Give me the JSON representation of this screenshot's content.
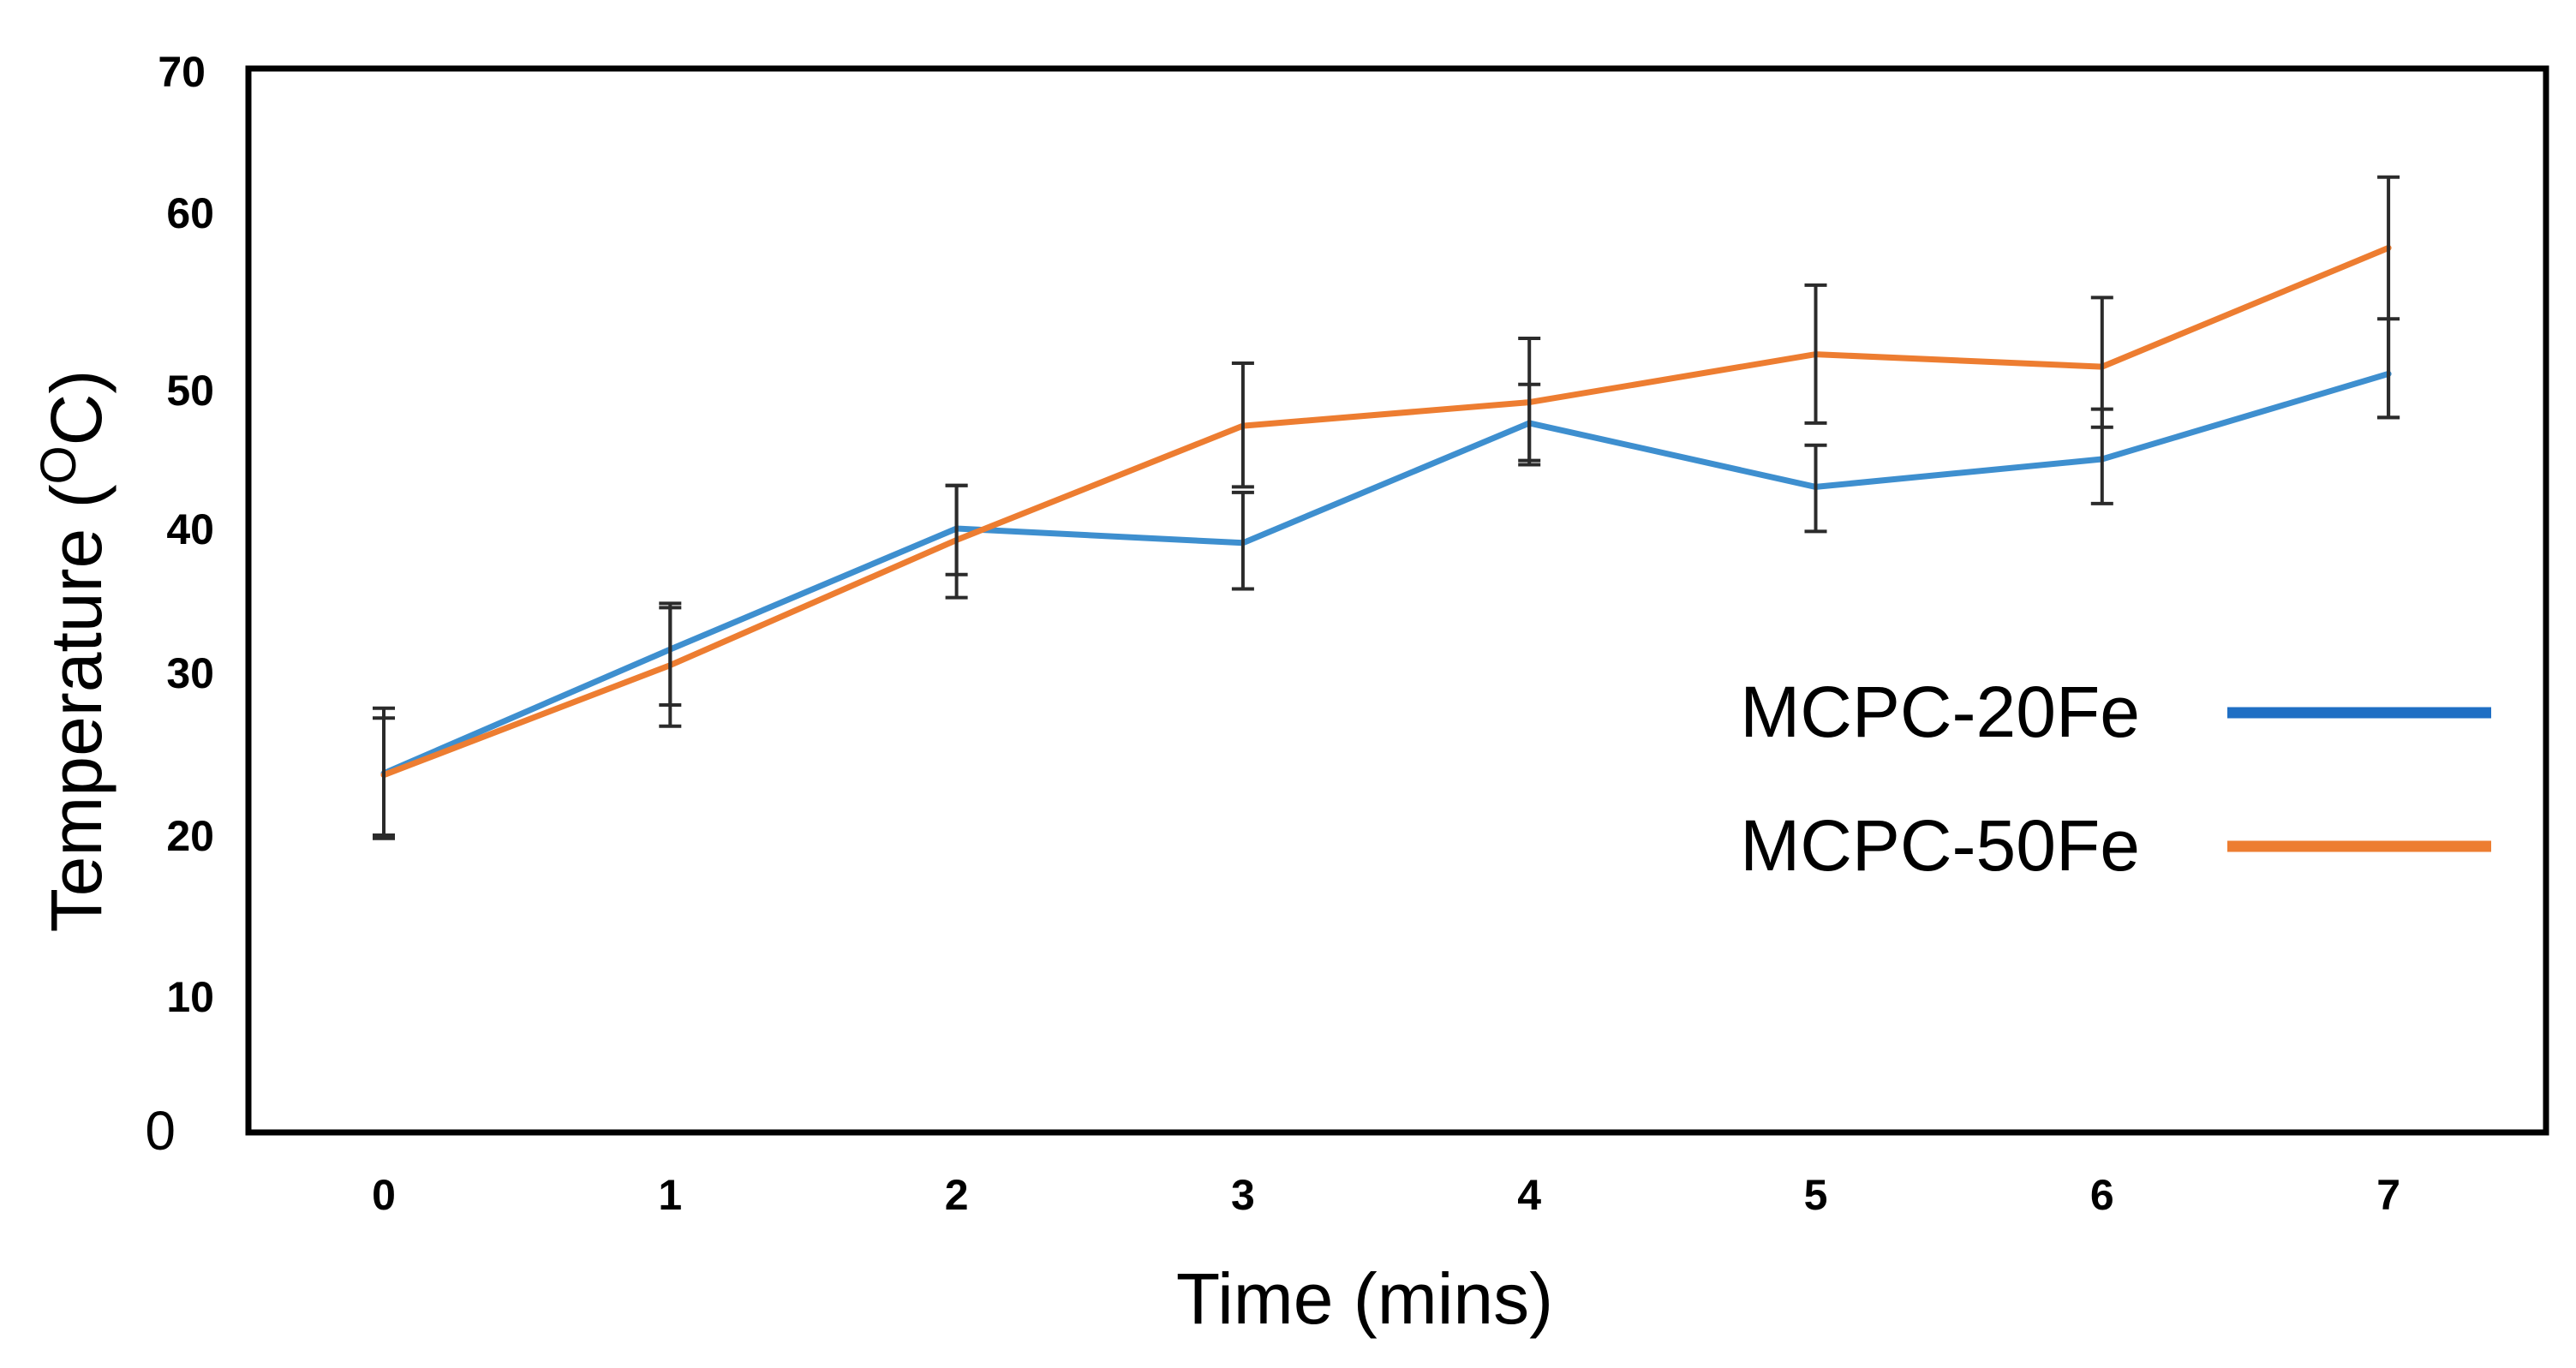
{
  "chart_data": {
    "type": "line",
    "title": "",
    "xlabel": "Time  (mins)",
    "ylabel_main": "Temperature (",
    "ylabel_super": "O",
    "ylabel_tail": "C)",
    "x": [
      0,
      1,
      2,
      3,
      4,
      5,
      6,
      7
    ],
    "x_tick_labels": [
      "0",
      "1",
      "2",
      "3",
      "4",
      "5",
      "6",
      "7"
    ],
    "y_tick_values": [
      0,
      10,
      20,
      30,
      40,
      50,
      60,
      70
    ],
    "y_tick_labels": [
      "0",
      "10",
      "20",
      "30",
      "40",
      "50",
      "60",
      "70"
    ],
    "ylim": [
      0,
      70
    ],
    "grid": false,
    "legend_position": "middle-right",
    "series": [
      {
        "name": "MCPC-20Fe",
        "color": "#3e8fcf",
        "legend_color": "#1f6fc4",
        "values": [
          23.8,
          31.6,
          40.0,
          39.0,
          47.6,
          43.0,
          45.0,
          50.9
        ],
        "err_upper": [
          27.8,
          34.8,
          43.1,
          42.6,
          50.3,
          46.0,
          48.6,
          54.0
        ],
        "err_lower": [
          19.8,
          28.0,
          36.8,
          35.8,
          44.9,
          39.8,
          41.8,
          48.0
        ]
      },
      {
        "name": "MCPC-50Fe",
        "color": "#ed7d31",
        "legend_color": "#ed7d31",
        "values": [
          23.7,
          30.5,
          39.2,
          47.4,
          49.1,
          52.0,
          51.3,
          58.0
        ],
        "err_upper": [
          27.2,
          34.5,
          43.1,
          51.5,
          52.9,
          55.9,
          55.2,
          62.5
        ],
        "err_lower": [
          20.0,
          26.7,
          35.2,
          43.0,
          44.6,
          47.6,
          47.3,
          48.0
        ]
      }
    ]
  }
}
